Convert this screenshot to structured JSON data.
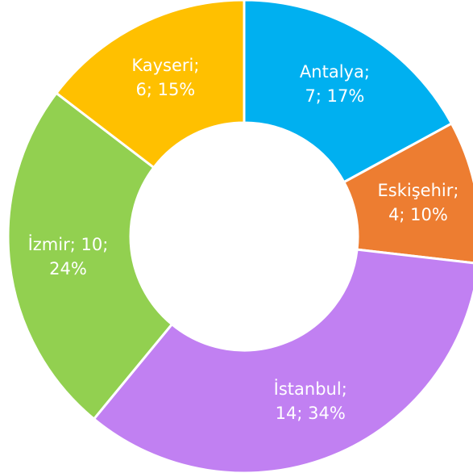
{
  "chart_data": {
    "type": "donut",
    "categories": [
      "Antalya",
      "Eskişehir",
      "İstanbul",
      "İzmir",
      "Kayseri"
    ],
    "values": [
      7,
      4,
      14,
      10,
      6
    ],
    "value_labels": [
      [
        "Antalya;",
        "7; 17%"
      ],
      [
        "Eskişehir;",
        "4; 10%"
      ],
      [
        "İstanbul;",
        "14; 34%"
      ],
      [
        "İzmir; 10;",
        "24%"
      ],
      [
        "Kayseri;",
        "6; 15%"
      ]
    ],
    "colors": [
      "#00b0f0",
      "#ed7d31",
      "#c180f2",
      "#92d050",
      "#ffc000"
    ]
  }
}
